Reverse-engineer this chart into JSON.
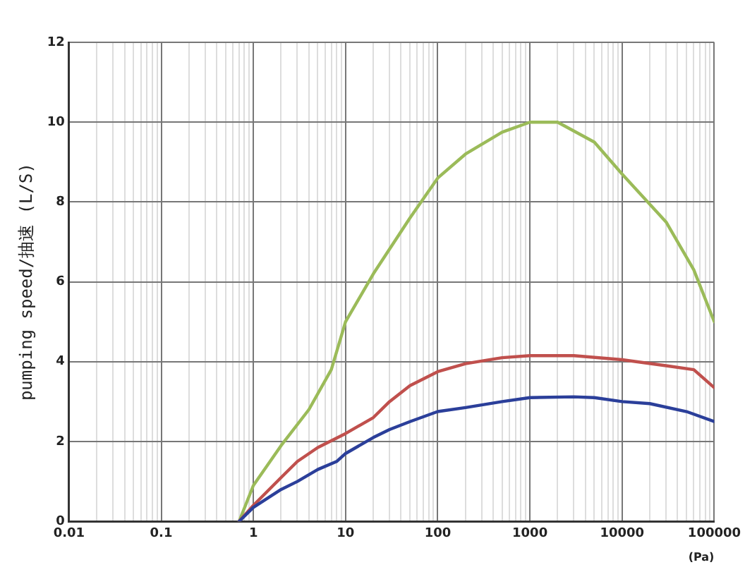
{
  "chart_data": {
    "type": "line",
    "xlabel": "(Pa)",
    "ylabel": "pumping speed/抽速 (L/S)",
    "log": "x",
    "grid": true,
    "xlim": [
      0.01,
      100000
    ],
    "ylim": [
      0,
      12
    ],
    "xticks": [
      0.01,
      {
        "value": 0.02,
        "label": null
      },
      {
        "value": 0.03,
        "label": null
      },
      {
        "value": 0.04,
        "label": null
      },
      {
        "value": 0.05,
        "label": null
      },
      {
        "value": 0.06,
        "label": null
      },
      {
        "value": 0.07,
        "label": null
      },
      {
        "value": 0.08,
        "label": null
      },
      {
        "value": 0.09,
        "label": null
      },
      0.1,
      {
        "value": 0.2,
        "label": null
      },
      {
        "value": 0.3,
        "label": null
      },
      {
        "value": 0.4,
        "label": null
      },
      {
        "value": 0.5,
        "label": null
      },
      {
        "value": 0.6,
        "label": null
      },
      {
        "value": 0.7,
        "label": null
      },
      {
        "value": 0.8,
        "label": null
      },
      {
        "value": 0.9,
        "label": null
      },
      1,
      {
        "value": 2,
        "label": null
      },
      {
        "value": 3,
        "label": null
      },
      {
        "value": 4,
        "label": null
      },
      {
        "value": 5,
        "label": null
      },
      {
        "value": 6,
        "label": null
      },
      {
        "value": 7,
        "label": null
      },
      {
        "value": 8,
        "label": null
      },
      {
        "value": 9,
        "label": null
      },
      10,
      {
        "value": 20,
        "label": null
      },
      {
        "value": 30,
        "label": null
      },
      {
        "value": 40,
        "label": null
      },
      {
        "value": 50,
        "label": null
      },
      {
        "value": 60,
        "label": null
      },
      {
        "value": 70,
        "label": null
      },
      {
        "value": 80,
        "label": null
      },
      {
        "value": 90,
        "label": null
      },
      100,
      {
        "value": 200,
        "label": null
      },
      {
        "value": 300,
        "label": null
      },
      {
        "value": 400,
        "label": null
      },
      {
        "value": 500,
        "label": null
      },
      {
        "value": 600,
        "label": null
      },
      {
        "value": 700,
        "label": null
      },
      {
        "value": 800,
        "label": null
      },
      {
        "value": 900,
        "label": null
      },
      1000,
      {
        "value": 2000,
        "label": null
      },
      {
        "value": 3000,
        "label": null
      },
      {
        "value": 4000,
        "label": null
      },
      {
        "value": 5000,
        "label": null
      },
      {
        "value": 6000,
        "label": null
      },
      {
        "value": 7000,
        "label": null
      },
      {
        "value": 8000,
        "label": null
      },
      {
        "value": 9000,
        "label": null
      },
      10000,
      {
        "value": 20000,
        "label": null
      },
      {
        "value": 30000,
        "label": null
      },
      {
        "value": 40000,
        "label": null
      },
      {
        "value": 50000,
        "label": null
      },
      {
        "value": 60000,
        "label": null
      },
      {
        "value": 70000,
        "label": null
      },
      {
        "value": 80000,
        "label": null
      },
      {
        "value": 90000,
        "label": null
      },
      100000
    ],
    "yticks": [
      0,
      2,
      4,
      6,
      8,
      10,
      12
    ],
    "series": [
      {
        "color": "#2b3f9a",
        "x": [
          0.7,
          1,
          2,
          3,
          5,
          8,
          10,
          20,
          30,
          50,
          100,
          200,
          500,
          1000,
          3000,
          5000,
          10000,
          20000,
          50000,
          100000
        ],
        "values": [
          0,
          0.35,
          0.8,
          1.0,
          1.3,
          1.5,
          1.7,
          2.1,
          2.3,
          2.5,
          2.75,
          2.85,
          3.0,
          3.1,
          3.12,
          3.1,
          3.0,
          2.95,
          2.75,
          2.5
        ]
      },
      {
        "color": "#c0504d",
        "x": [
          0.7,
          1,
          2,
          3,
          5,
          10,
          20,
          30,
          50,
          100,
          200,
          500,
          1000,
          3000,
          10000,
          30000,
          60000,
          100000
        ],
        "values": [
          0,
          0.4,
          1.1,
          1.5,
          1.85,
          2.2,
          2.6,
          3.0,
          3.4,
          3.75,
          3.95,
          4.1,
          4.15,
          4.15,
          4.05,
          3.9,
          3.8,
          3.35
        ]
      },
      {
        "color": "#9bbb59",
        "x": [
          0.7,
          1,
          2,
          4,
          7,
          10,
          20,
          50,
          100,
          200,
          500,
          1000,
          2000,
          5000,
          10000,
          30000,
          60000,
          100000
        ],
        "values": [
          0,
          0.9,
          1.9,
          2.8,
          3.8,
          5.0,
          6.2,
          7.6,
          8.6,
          9.2,
          9.75,
          10.0,
          10.0,
          9.5,
          8.7,
          7.5,
          6.3,
          5.0
        ]
      }
    ]
  }
}
